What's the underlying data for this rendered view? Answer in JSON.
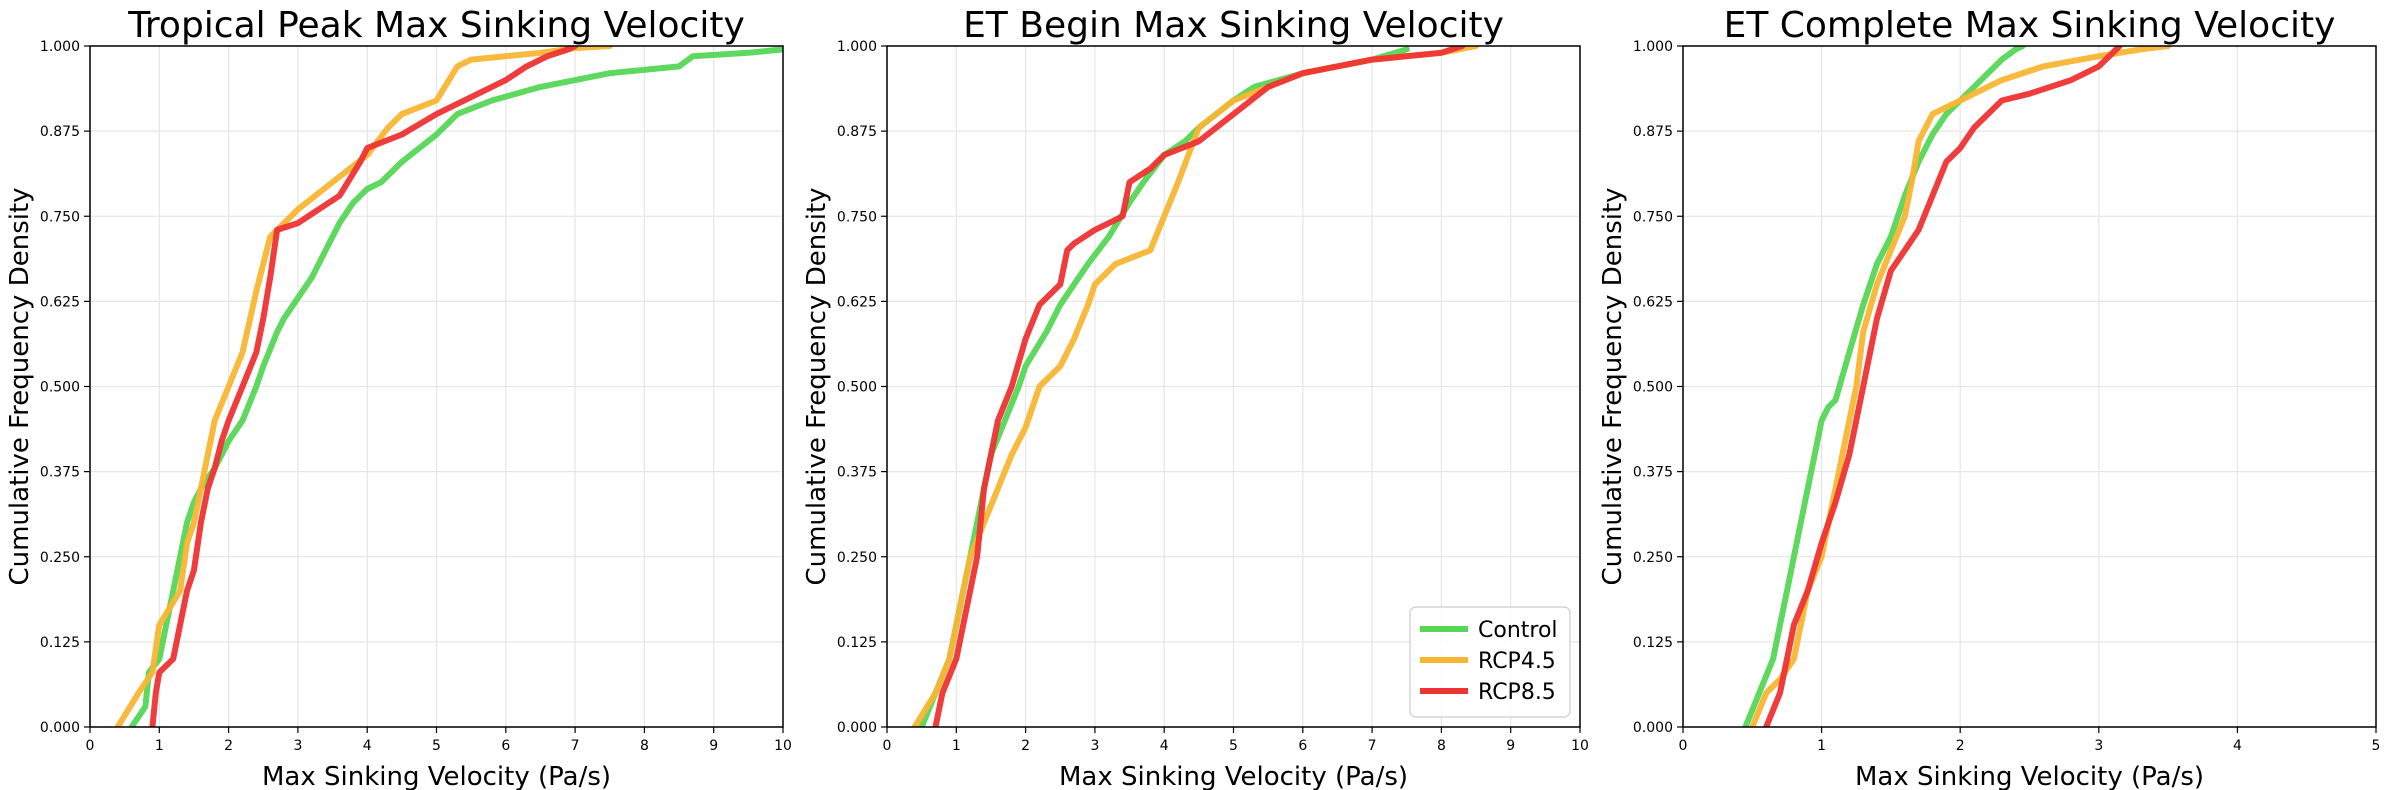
{
  "colors": {
    "Control": "#55d655",
    "RCP4.5": "#f8b532",
    "RCP8.5": "#ee3333"
  },
  "chart_data": [
    {
      "type": "line",
      "title": "Tropical Peak Max Sinking Velocity",
      "xlabel": "Max Sinking Velocity (Pa/s)",
      "ylabel": "Cumulative Frequency Density",
      "xlim": [
        0,
        10
      ],
      "ylim": [
        0,
        1
      ],
      "xticks": [
        "0",
        "1",
        "2",
        "3",
        "4",
        "5",
        "6",
        "7",
        "8",
        "9",
        "10"
      ],
      "yticks": [
        "0.000",
        "0.125",
        "0.250",
        "0.375",
        "0.500",
        "0.625",
        "0.750",
        "0.875",
        "1.000"
      ],
      "grid": true,
      "series": [
        {
          "name": "Control",
          "x": [
            0.6,
            0.8,
            0.85,
            1.0,
            1.1,
            1.2,
            1.3,
            1.4,
            1.5,
            1.6,
            1.8,
            1.9,
            2.0,
            2.2,
            2.4,
            2.5,
            2.7,
            2.8,
            3.0,
            3.2,
            3.4,
            3.6,
            3.8,
            4.0,
            4.2,
            4.5,
            5.0,
            5.3,
            5.8,
            6.5,
            7.5,
            8.5,
            8.7,
            9.5,
            10.0
          ],
          "y": [
            0.0,
            0.03,
            0.08,
            0.1,
            0.15,
            0.2,
            0.25,
            0.3,
            0.33,
            0.35,
            0.38,
            0.4,
            0.42,
            0.45,
            0.5,
            0.53,
            0.58,
            0.6,
            0.63,
            0.66,
            0.7,
            0.74,
            0.77,
            0.79,
            0.8,
            0.83,
            0.87,
            0.9,
            0.92,
            0.94,
            0.96,
            0.97,
            0.985,
            0.99,
            0.995
          ]
        },
        {
          "name": "RCP4.5",
          "x": [
            0.4,
            0.7,
            0.9,
            1.0,
            1.3,
            1.4,
            1.5,
            1.6,
            1.7,
            1.8,
            2.0,
            2.2,
            2.4,
            2.6,
            2.8,
            3.0,
            3.5,
            4.0,
            4.3,
            4.5,
            5.0,
            5.3,
            5.5,
            6.5,
            7.0,
            7.5
          ],
          "y": [
            0.0,
            0.05,
            0.08,
            0.15,
            0.2,
            0.27,
            0.3,
            0.35,
            0.4,
            0.45,
            0.5,
            0.55,
            0.64,
            0.72,
            0.74,
            0.76,
            0.8,
            0.84,
            0.88,
            0.9,
            0.92,
            0.97,
            0.98,
            0.99,
            0.997,
            1.0
          ]
        },
        {
          "name": "RCP8.5",
          "x": [
            0.9,
            0.95,
            1.0,
            1.2,
            1.3,
            1.4,
            1.5,
            1.6,
            1.7,
            1.8,
            1.9,
            2.0,
            2.2,
            2.4,
            2.5,
            2.6,
            2.7,
            3.0,
            3.3,
            3.6,
            3.9,
            4.0,
            4.5,
            5.0,
            5.5,
            6.0,
            6.3,
            6.6,
            6.9,
            7.0
          ],
          "y": [
            0.0,
            0.05,
            0.08,
            0.1,
            0.15,
            0.2,
            0.23,
            0.3,
            0.35,
            0.38,
            0.42,
            0.45,
            0.5,
            0.55,
            0.6,
            0.66,
            0.73,
            0.74,
            0.76,
            0.78,
            0.83,
            0.85,
            0.87,
            0.9,
            0.925,
            0.95,
            0.97,
            0.985,
            0.995,
            1.0
          ]
        }
      ]
    },
    {
      "type": "line",
      "title": "ET Begin Max Sinking Velocity",
      "xlabel": "Max Sinking Velocity (Pa/s)",
      "ylabel": "Cumulative Frequency Density",
      "xlim": [
        0,
        10
      ],
      "ylim": [
        0,
        1
      ],
      "xticks": [
        "0",
        "1",
        "2",
        "3",
        "4",
        "5",
        "6",
        "7",
        "8",
        "9",
        "10"
      ],
      "yticks": [
        "0.000",
        "0.125",
        "0.250",
        "0.375",
        "0.500",
        "0.625",
        "0.750",
        "0.875",
        "1.000"
      ],
      "grid": true,
      "legend": {
        "position": "bottom-right",
        "entries": [
          "Control",
          "RCP4.5",
          "RCP8.5"
        ]
      },
      "series": [
        {
          "name": "Control",
          "x": [
            0.5,
            0.7,
            0.9,
            1.0,
            1.1,
            1.2,
            1.3,
            1.4,
            1.5,
            1.7,
            1.9,
            2.0,
            2.3,
            2.5,
            2.7,
            2.9,
            3.2,
            3.5,
            3.7,
            4.0,
            4.3,
            4.5,
            5.0,
            5.3,
            6.0,
            7.0,
            7.5
          ],
          "y": [
            0.0,
            0.05,
            0.1,
            0.15,
            0.2,
            0.25,
            0.3,
            0.35,
            0.4,
            0.45,
            0.5,
            0.53,
            0.58,
            0.62,
            0.65,
            0.68,
            0.72,
            0.77,
            0.8,
            0.84,
            0.86,
            0.88,
            0.92,
            0.94,
            0.96,
            0.98,
            0.995
          ]
        },
        {
          "name": "RCP4.5",
          "x": [
            0.4,
            0.7,
            0.9,
            1.0,
            1.1,
            1.2,
            1.4,
            1.6,
            1.8,
            2.0,
            2.2,
            2.5,
            2.7,
            2.9,
            3.0,
            3.3,
            3.8,
            4.0,
            4.2,
            4.5,
            5.0,
            5.5,
            6.0,
            7.0,
            8.0,
            8.5
          ],
          "y": [
            0.0,
            0.05,
            0.1,
            0.15,
            0.2,
            0.25,
            0.3,
            0.35,
            0.4,
            0.44,
            0.5,
            0.53,
            0.57,
            0.62,
            0.65,
            0.68,
            0.7,
            0.75,
            0.8,
            0.88,
            0.92,
            0.94,
            0.96,
            0.98,
            0.99,
            1.0
          ]
        },
        {
          "name": "RCP8.5",
          "x": [
            0.7,
            0.8,
            1.0,
            1.1,
            1.2,
            1.3,
            1.35,
            1.4,
            1.5,
            1.6,
            1.8,
            2.0,
            2.2,
            2.5,
            2.6,
            2.7,
            3.0,
            3.4,
            3.5,
            3.8,
            4.0,
            4.5,
            5.0,
            5.5,
            6.0,
            7.0,
            8.0,
            8.3
          ],
          "y": [
            0.0,
            0.05,
            0.1,
            0.15,
            0.2,
            0.25,
            0.3,
            0.35,
            0.4,
            0.45,
            0.5,
            0.57,
            0.62,
            0.65,
            0.7,
            0.71,
            0.73,
            0.75,
            0.8,
            0.82,
            0.84,
            0.86,
            0.9,
            0.94,
            0.96,
            0.98,
            0.99,
            1.0
          ]
        }
      ]
    },
    {
      "type": "line",
      "title": "ET Complete Max Sinking Velocity",
      "xlabel": "Max Sinking Velocity (Pa/s)",
      "ylabel": "Cumulative Frequency Density",
      "xlim": [
        0,
        5
      ],
      "ylim": [
        0,
        1
      ],
      "xticks": [
        "0",
        "1",
        "2",
        "3",
        "4",
        "5"
      ],
      "yticks": [
        "0.000",
        "0.125",
        "0.250",
        "0.375",
        "0.500",
        "0.625",
        "0.750",
        "0.875",
        "1.000"
      ],
      "grid": true,
      "series": [
        {
          "name": "Control",
          "x": [
            0.45,
            0.55,
            0.65,
            0.7,
            0.75,
            0.8,
            0.85,
            0.9,
            0.95,
            1.0,
            1.05,
            1.1,
            1.2,
            1.3,
            1.4,
            1.5,
            1.6,
            1.7,
            1.8,
            1.9,
            2.0,
            2.1,
            2.2,
            2.3,
            2.4,
            2.45
          ],
          "y": [
            0.0,
            0.05,
            0.1,
            0.15,
            0.2,
            0.25,
            0.3,
            0.35,
            0.4,
            0.45,
            0.47,
            0.48,
            0.55,
            0.62,
            0.68,
            0.72,
            0.78,
            0.83,
            0.87,
            0.9,
            0.92,
            0.94,
            0.96,
            0.98,
            0.995,
            1.0
          ]
        },
        {
          "name": "RCP4.5",
          "x": [
            0.5,
            0.6,
            0.7,
            0.8,
            0.85,
            0.9,
            1.0,
            1.05,
            1.1,
            1.2,
            1.25,
            1.3,
            1.4,
            1.5,
            1.6,
            1.65,
            1.7,
            1.8,
            2.0,
            2.3,
            2.6,
            3.0,
            3.3,
            3.5
          ],
          "y": [
            0.0,
            0.05,
            0.07,
            0.1,
            0.15,
            0.2,
            0.25,
            0.3,
            0.35,
            0.45,
            0.5,
            0.58,
            0.65,
            0.7,
            0.75,
            0.8,
            0.86,
            0.9,
            0.92,
            0.95,
            0.97,
            0.985,
            0.995,
            1.0
          ]
        },
        {
          "name": "RCP8.5",
          "x": [
            0.6,
            0.7,
            0.75,
            0.8,
            0.9,
            1.0,
            1.1,
            1.2,
            1.3,
            1.4,
            1.5,
            1.6,
            1.7,
            1.8,
            1.9,
            2.0,
            2.1,
            2.3,
            2.5,
            2.8,
            3.0,
            3.1,
            3.15
          ],
          "y": [
            0.0,
            0.05,
            0.1,
            0.15,
            0.2,
            0.27,
            0.33,
            0.4,
            0.5,
            0.6,
            0.67,
            0.7,
            0.73,
            0.78,
            0.83,
            0.85,
            0.88,
            0.92,
            0.93,
            0.95,
            0.97,
            0.99,
            1.0
          ]
        }
      ]
    }
  ]
}
